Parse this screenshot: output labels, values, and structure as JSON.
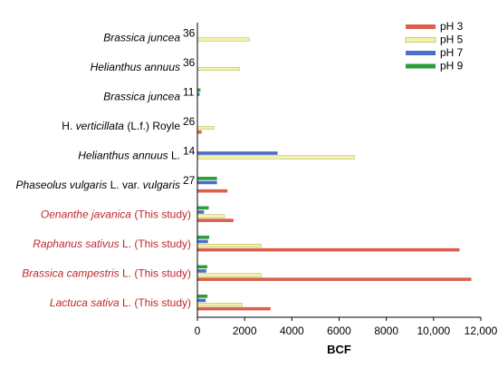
{
  "chart_data": {
    "type": "bar",
    "orientation": "horizontal",
    "title": "",
    "xlabel": "BCF",
    "ylabel": "",
    "xlim": [
      0,
      12000
    ],
    "x_ticks": [
      0,
      2000,
      4000,
      6000,
      8000,
      10000,
      12000
    ],
    "x_tick_labels": [
      "0",
      "2000",
      "4000",
      "6000",
      "8000",
      "10,000",
      "12,000"
    ],
    "grid": false,
    "legend_position": "top-right",
    "categories": [
      {
        "parts": [
          {
            "text": "Brassica juncea",
            "italic": true
          }
        ],
        "sup": "36",
        "color": "#000000"
      },
      {
        "parts": [
          {
            "text": "Helianthus annuus",
            "italic": true
          }
        ],
        "sup": "36",
        "color": "#000000"
      },
      {
        "parts": [
          {
            "text": "Brassica juncea",
            "italic": true
          }
        ],
        "sup": "11",
        "color": "#000000"
      },
      {
        "parts": [
          {
            "text": "H. ",
            "italic": false
          },
          {
            "text": "verticillata",
            "italic": true
          },
          {
            "text": " (L.f.) Royle",
            "italic": false
          }
        ],
        "sup": "26",
        "color": "#000000"
      },
      {
        "parts": [
          {
            "text": "Helianthus annuus",
            "italic": true
          },
          {
            "text": " L.",
            "italic": false
          }
        ],
        "sup": "14",
        "color": "#000000"
      },
      {
        "parts": [
          {
            "text": "Phaseolus vulgaris",
            "italic": true
          },
          {
            "text": " L. var. ",
            "italic": false
          },
          {
            "text": "vulgaris",
            "italic": true
          }
        ],
        "sup": "27",
        "color": "#000000"
      },
      {
        "parts": [
          {
            "text": "Oenanthe javanica",
            "italic": true
          },
          {
            "text": " (This study)",
            "italic": false
          }
        ],
        "sup": "",
        "color": "#c0282d"
      },
      {
        "parts": [
          {
            "text": "Raphanus sativus",
            "italic": true
          },
          {
            "text": " L. (This study)",
            "italic": false
          }
        ],
        "sup": "",
        "color": "#c0282d"
      },
      {
        "parts": [
          {
            "text": "Brassica campestris",
            "italic": true
          },
          {
            "text": " L. (This study)",
            "italic": false
          }
        ],
        "sup": "",
        "color": "#c0282d"
      },
      {
        "parts": [
          {
            "text": "Lactuca sativa",
            "italic": true
          },
          {
            "text": " L. (This study)",
            "italic": false
          }
        ],
        "sup": "",
        "color": "#c0282d"
      }
    ],
    "series": [
      {
        "name": "pH 3",
        "color": "#d9604c",
        "values": [
          null,
          null,
          null,
          180,
          null,
          1270,
          1530,
          11100,
          11600,
          3100
        ]
      },
      {
        "name": "pH 5",
        "color": "#f3f3a8",
        "values": [
          2200,
          1780,
          null,
          700,
          6650,
          null,
          1150,
          2700,
          2700,
          1900
        ]
      },
      {
        "name": "pH 7",
        "color": "#4a6fc9",
        "values": [
          null,
          null,
          90,
          null,
          3400,
          830,
          280,
          450,
          380,
          350
        ]
      },
      {
        "name": "pH 9",
        "color": "#2a9e3a",
        "values": [
          null,
          null,
          130,
          null,
          null,
          830,
          480,
          500,
          420,
          430
        ]
      }
    ]
  }
}
